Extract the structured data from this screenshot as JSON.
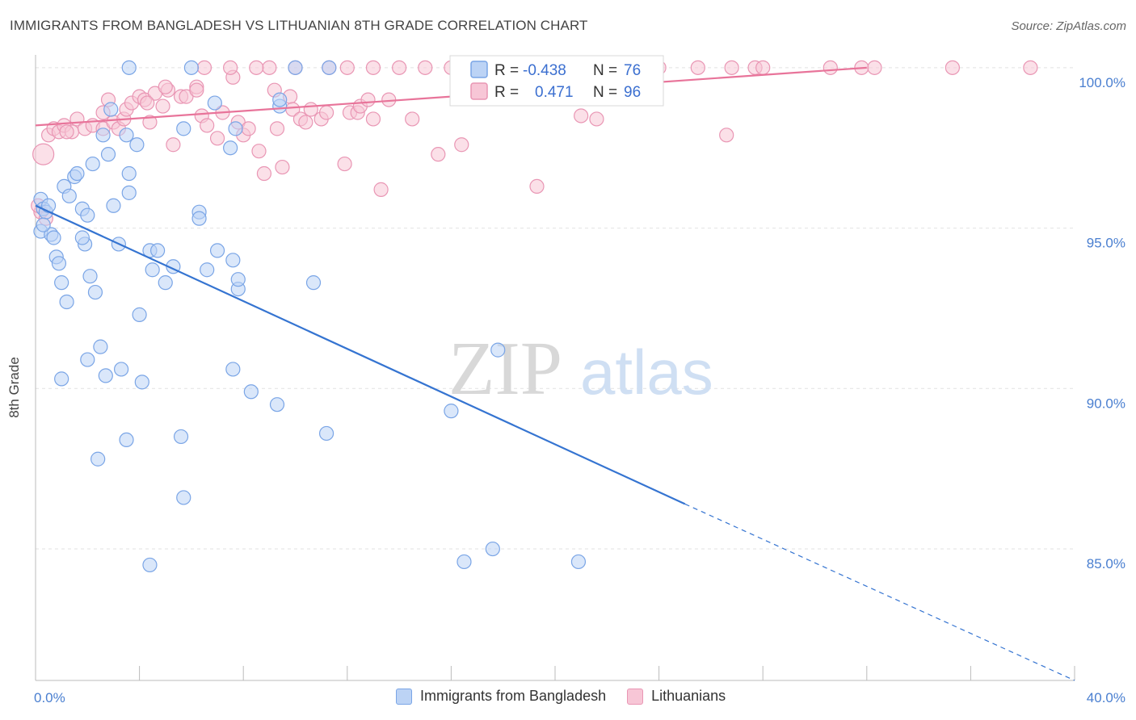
{
  "title": "IMMIGRANTS FROM BANGLADESH VS LITHUANIAN 8TH GRADE CORRELATION CHART",
  "source": "Source: ZipAtlas.com",
  "watermark": {
    "zip": "ZIP",
    "atlas": "atlas"
  },
  "colors": {
    "blue": "#3574d1",
    "blue_fill": "#bcd3f5",
    "pink": "#e8749a",
    "pink_fill": "#f7c6d6"
  },
  "legend": {
    "rows": [
      {
        "r_label": "R =",
        "r_value": "-0.438",
        "n_label": "N =",
        "n_value": "76"
      },
      {
        "r_label": "R =",
        "r_value": "0.471",
        "n_label": "N =",
        "n_value": "96"
      }
    ]
  },
  "bottom_legend": {
    "blue_label": "Immigrants from Bangladesh",
    "pink_label": "Lithuanians"
  },
  "chart_data": {
    "type": "scatter",
    "ylabel": "8th Grade",
    "x_tick_labels": [
      "0.0%",
      "40.0%"
    ],
    "y_tick_labels": [
      "100.0%",
      "95.0%",
      "90.0%",
      "85.0%"
    ],
    "xlim": [
      0,
      40
    ],
    "ylim": [
      80.9,
      100.6
    ],
    "grid": true,
    "series": [
      {
        "name": "Immigrants from Bangladesh",
        "color": "#3574d1",
        "trend": {
          "x0": 0,
          "y0": 95.7,
          "x1": 25.0,
          "y1": 86.4,
          "dash_to_x": 40,
          "dash_to_y": 80.9
        },
        "points": [
          [
            0.2,
            95.9
          ],
          [
            0.3,
            95.6
          ],
          [
            0.4,
            95.5
          ],
          [
            0.5,
            95.7
          ],
          [
            0.2,
            94.9
          ],
          [
            0.6,
            94.8
          ],
          [
            0.7,
            94.7
          ],
          [
            0.8,
            94.1
          ],
          [
            0.9,
            93.9
          ],
          [
            1.1,
            96.3
          ],
          [
            1.3,
            96.0
          ],
          [
            1.5,
            96.6
          ],
          [
            1.6,
            96.7
          ],
          [
            1.8,
            95.6
          ],
          [
            2.2,
            97.0
          ],
          [
            2.6,
            97.9
          ],
          [
            2.8,
            97.3
          ],
          [
            2.9,
            98.7
          ],
          [
            3.0,
            95.7
          ],
          [
            3.2,
            94.5
          ],
          [
            3.5,
            97.9
          ],
          [
            3.6,
            96.1
          ],
          [
            3.6,
            96.7
          ],
          [
            3.9,
            97.6
          ],
          [
            4.4,
            94.3
          ],
          [
            4.5,
            93.7
          ],
          [
            4.7,
            94.3
          ],
          [
            5.0,
            93.3
          ],
          [
            5.3,
            93.8
          ],
          [
            5.7,
            98.1
          ],
          [
            6.3,
            95.5
          ],
          [
            6.3,
            95.3
          ],
          [
            6.6,
            93.7
          ],
          [
            6.9,
            98.9
          ],
          [
            7.0,
            94.3
          ],
          [
            7.5,
            97.5
          ],
          [
            7.7,
            98.1
          ],
          [
            7.6,
            94.0
          ],
          [
            7.8,
            93.1
          ],
          [
            7.8,
            93.4
          ],
          [
            9.4,
            98.8
          ],
          [
            9.4,
            99.0
          ],
          [
            3.6,
            100.0
          ],
          [
            6.0,
            100.0
          ],
          [
            10.0,
            100.0
          ],
          [
            1.0,
            93.3
          ],
          [
            1.2,
            92.7
          ],
          [
            2.1,
            93.5
          ],
          [
            2.3,
            93.0
          ],
          [
            4.0,
            92.3
          ],
          [
            2.5,
            91.3
          ],
          [
            2.0,
            90.9
          ],
          [
            3.3,
            90.6
          ],
          [
            2.7,
            90.4
          ],
          [
            1.0,
            90.3
          ],
          [
            4.1,
            90.2
          ],
          [
            7.6,
            90.6
          ],
          [
            8.3,
            89.9
          ],
          [
            9.3,
            89.5
          ],
          [
            3.5,
            88.4
          ],
          [
            5.6,
            88.5
          ],
          [
            2.4,
            87.8
          ],
          [
            11.2,
            88.6
          ],
          [
            5.7,
            86.6
          ],
          [
            4.4,
            84.5
          ],
          [
            10.7,
            93.3
          ],
          [
            16.0,
            89.3
          ],
          [
            17.8,
            91.2
          ],
          [
            16.5,
            84.6
          ],
          [
            17.6,
            85.0
          ],
          [
            20.9,
            84.6
          ],
          [
            11.3,
            100.0
          ],
          [
            1.9,
            94.5
          ],
          [
            1.8,
            94.7
          ],
          [
            2.0,
            95.4
          ],
          [
            0.3,
            95.1
          ]
        ]
      },
      {
        "name": "Lithuanians",
        "color": "#e8749a",
        "trend": {
          "x0": 0,
          "y0": 98.2,
          "x1": 32.0,
          "y1": 100.0
        },
        "points": [
          [
            0.3,
            97.3
          ],
          [
            0.5,
            97.9
          ],
          [
            0.7,
            98.1
          ],
          [
            0.9,
            98.0
          ],
          [
            1.1,
            98.2
          ],
          [
            1.4,
            98.0
          ],
          [
            1.6,
            98.4
          ],
          [
            1.9,
            98.1
          ],
          [
            2.2,
            98.2
          ],
          [
            2.6,
            98.1
          ],
          [
            2.6,
            98.6
          ],
          [
            3.0,
            98.3
          ],
          [
            3.2,
            98.1
          ],
          [
            3.4,
            98.4
          ],
          [
            3.5,
            98.7
          ],
          [
            3.7,
            98.9
          ],
          [
            4.0,
            99.1
          ],
          [
            4.2,
            99.0
          ],
          [
            4.4,
            98.3
          ],
          [
            4.6,
            99.2
          ],
          [
            4.9,
            98.8
          ],
          [
            5.1,
            99.3
          ],
          [
            5.3,
            97.6
          ],
          [
            5.6,
            99.1
          ],
          [
            5.8,
            99.1
          ],
          [
            6.2,
            99.4
          ],
          [
            6.2,
            99.3
          ],
          [
            6.4,
            98.5
          ],
          [
            6.6,
            98.2
          ],
          [
            7.0,
            97.8
          ],
          [
            7.2,
            98.6
          ],
          [
            7.6,
            99.7
          ],
          [
            7.8,
            98.3
          ],
          [
            8.0,
            97.9
          ],
          [
            8.2,
            98.1
          ],
          [
            8.6,
            97.4
          ],
          [
            8.8,
            96.7
          ],
          [
            9.2,
            99.3
          ],
          [
            9.3,
            98.1
          ],
          [
            9.5,
            96.9
          ],
          [
            9.8,
            99.1
          ],
          [
            9.9,
            98.7
          ],
          [
            10.2,
            98.4
          ],
          [
            10.4,
            98.3
          ],
          [
            10.6,
            98.7
          ],
          [
            11.0,
            98.4
          ],
          [
            11.2,
            98.6
          ],
          [
            11.9,
            97.0
          ],
          [
            12.1,
            98.6
          ],
          [
            12.4,
            98.6
          ],
          [
            12.5,
            98.8
          ],
          [
            13.0,
            98.4
          ],
          [
            13.3,
            96.2
          ],
          [
            14.5,
            98.4
          ],
          [
            15.5,
            97.3
          ],
          [
            16.4,
            97.6
          ],
          [
            19.3,
            96.3
          ],
          [
            21.0,
            98.5
          ],
          [
            21.6,
            98.4
          ],
          [
            26.6,
            97.9
          ],
          [
            6.5,
            100.0
          ],
          [
            7.5,
            100.0
          ],
          [
            9.0,
            100.0
          ],
          [
            10.0,
            100.0
          ],
          [
            11.3,
            100.0
          ],
          [
            12.0,
            100.0
          ],
          [
            13.0,
            100.0
          ],
          [
            14.0,
            100.0
          ],
          [
            15.0,
            100.0
          ],
          [
            16.0,
            100.0
          ],
          [
            17.0,
            100.0
          ],
          [
            18.5,
            100.0
          ],
          [
            19.5,
            100.0
          ],
          [
            20.5,
            100.0
          ],
          [
            21.5,
            100.0
          ],
          [
            22.5,
            100.0
          ],
          [
            24.0,
            100.0
          ],
          [
            25.5,
            100.0
          ],
          [
            26.8,
            100.0
          ],
          [
            27.7,
            100.0
          ],
          [
            28.0,
            100.0
          ],
          [
            30.6,
            100.0
          ],
          [
            31.8,
            100.0
          ],
          [
            32.3,
            100.0
          ],
          [
            35.3,
            100.0
          ],
          [
            38.3,
            100.0
          ],
          [
            8.5,
            100.0
          ],
          [
            12.8,
            99.0
          ],
          [
            13.6,
            99.0
          ],
          [
            0.2,
            95.5
          ],
          [
            0.1,
            95.7
          ],
          [
            0.4,
            95.3
          ],
          [
            1.2,
            98.0
          ],
          [
            2.8,
            99.0
          ],
          [
            4.3,
            98.9
          ],
          [
            5.0,
            99.4
          ]
        ]
      }
    ]
  }
}
